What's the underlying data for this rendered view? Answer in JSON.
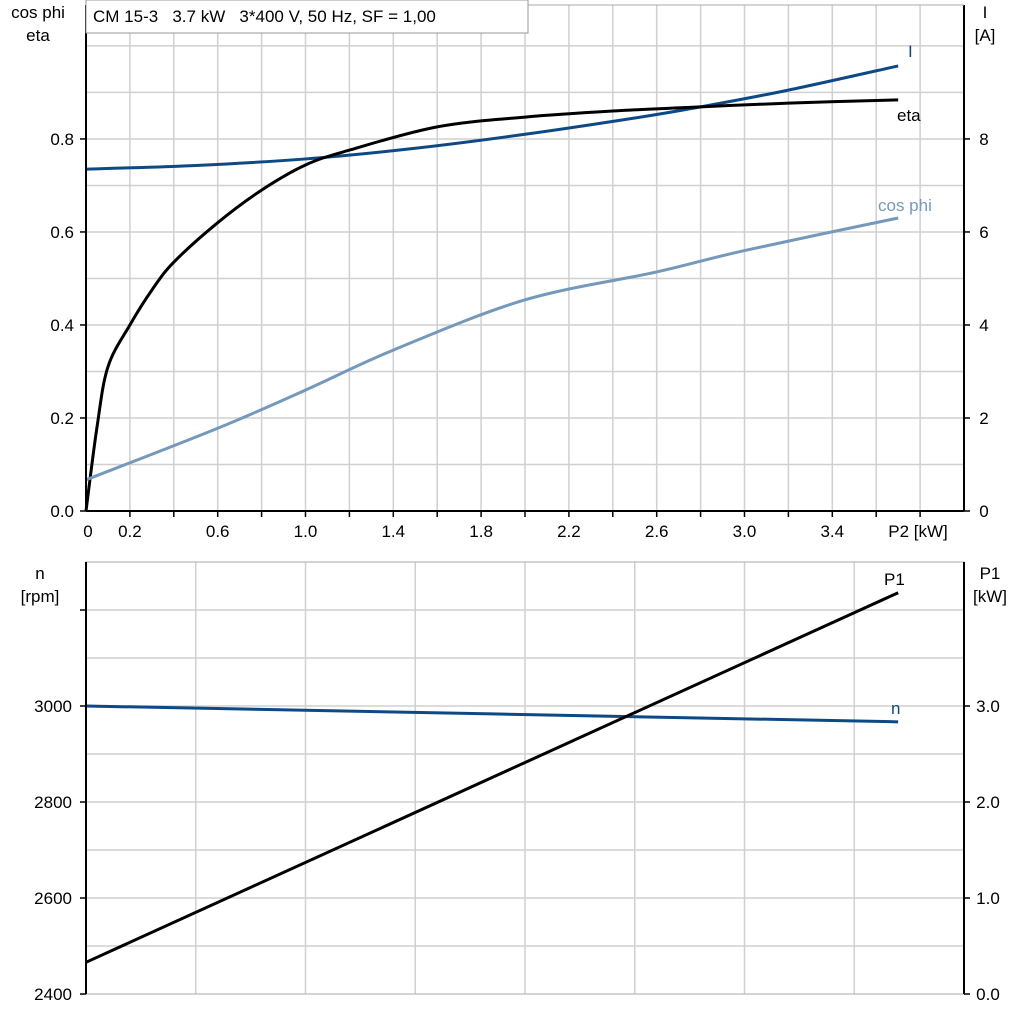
{
  "chart_data": [
    {
      "type": "line",
      "title": "CM 15-3   3.7 kW   3*400 V, 50 Hz, SF = 1,00",
      "xlabel": "P2 [kW]",
      "ylabel_left": [
        "cos phi",
        "eta"
      ],
      "ylabel_right": [
        "I",
        "[A]"
      ],
      "xlim": [
        0,
        4.0
      ],
      "ylim_left": [
        0,
        1.088
      ],
      "ylim_right": [
        0,
        10.88
      ],
      "x_tick_labels": [
        "0",
        "0.2",
        "0.6",
        "1.0",
        "1.4",
        "1.8",
        "2.2",
        "2.6",
        "3.0",
        "3.4"
      ],
      "y_left_tick_labels": [
        "0.0",
        "0.2",
        "0.4",
        "0.6",
        "0.8"
      ],
      "y_right_tick_labels": [
        "0",
        "2",
        "4",
        "6",
        "8"
      ],
      "grid": true,
      "series": [
        {
          "name": "I",
          "axis": "right",
          "color": "#0d4a85",
          "x": [
            0,
            0.5,
            1.0,
            1.5,
            2.0,
            2.5,
            2.8,
            3.2,
            3.7
          ],
          "y": [
            7.35,
            7.43,
            7.57,
            7.8,
            8.1,
            8.45,
            8.69,
            9.05,
            9.57
          ]
        },
        {
          "name": "eta",
          "axis": "left",
          "color": "#000000",
          "x": [
            0,
            0.05,
            0.1,
            0.2,
            0.3,
            0.4,
            0.6,
            0.8,
            1.0,
            1.2,
            1.6,
            2.0,
            2.4,
            2.8,
            3.2,
            3.7
          ],
          "y": [
            0,
            0.18,
            0.31,
            0.4,
            0.475,
            0.535,
            0.62,
            0.69,
            0.744,
            0.776,
            0.826,
            0.847,
            0.86,
            0.869,
            0.877,
            0.884
          ]
        },
        {
          "name": "cos phi",
          "axis": "left",
          "color": "#7499bb",
          "x": [
            0,
            0.6,
            1.0,
            1.4,
            2.0,
            2.6,
            3.0,
            3.7
          ],
          "y": [
            0.067,
            0.178,
            0.26,
            0.346,
            0.454,
            0.514,
            0.56,
            0.63
          ]
        }
      ]
    },
    {
      "type": "line",
      "ylabel_left": [
        "n",
        "[rpm]"
      ],
      "ylabel_right": [
        "P1",
        "[kW]"
      ],
      "xlim": [
        0,
        4.0
      ],
      "ylim_left": [
        2400,
        3300
      ],
      "ylim_right": [
        0,
        4.5
      ],
      "y_left_tick_labels": [
        "2400",
        "2600",
        "2800",
        "3000"
      ],
      "y_right_tick_labels": [
        "0.0",
        "1.0",
        "2.0",
        "3.0"
      ],
      "grid": true,
      "series": [
        {
          "name": "n",
          "axis": "left",
          "color": "#0d4a85",
          "x": [
            0,
            3.7
          ],
          "y": [
            3000,
            2967
          ]
        },
        {
          "name": "P1",
          "axis": "right",
          "color": "#000000",
          "x": [
            0,
            3.7
          ],
          "y": [
            0.33,
            4.18
          ]
        }
      ]
    }
  ]
}
